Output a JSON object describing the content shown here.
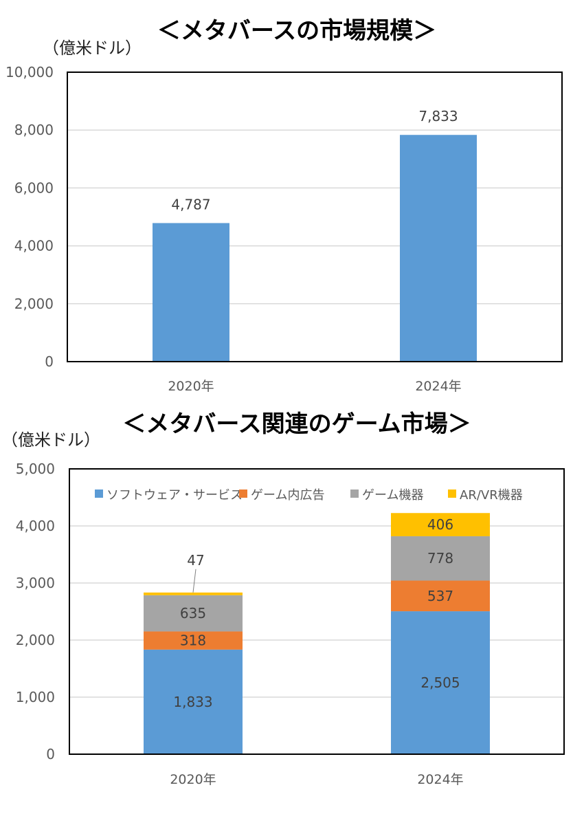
{
  "chart_data": [
    {
      "type": "bar",
      "title": "＜メタバースの市場規模＞",
      "ylabel": "（億米ドル）",
      "xlabel": "",
      "categories": [
        "2020年",
        "2024年"
      ],
      "values": [
        4787,
        7833
      ],
      "value_labels": [
        "4,787",
        "7,833"
      ],
      "ylim": [
        0,
        10000
      ],
      "yticks": [
        0,
        2000,
        4000,
        6000,
        8000,
        10000
      ],
      "ytick_labels": [
        "0",
        "2,000",
        "4,000",
        "6,000",
        "8,000",
        "10,000"
      ],
      "grid": true,
      "color": "#5B9BD5"
    },
    {
      "type": "bar",
      "stacked": true,
      "title": "＜メタバース関連のゲーム市場＞",
      "ylabel": "（億米ドル）",
      "xlabel": "",
      "categories": [
        "2020年",
        "2024年"
      ],
      "ylim": [
        0,
        5000
      ],
      "yticks": [
        0,
        1000,
        2000,
        3000,
        4000,
        5000
      ],
      "ytick_labels": [
        "0",
        "1,000",
        "2,000",
        "3,000",
        "4,000",
        "5,000"
      ],
      "grid": true,
      "legend_position": "top",
      "series": [
        {
          "name": "ソフトウェア・サービス",
          "values": [
            1833,
            2505
          ],
          "labels": [
            "1,833",
            "2,505"
          ],
          "color": "#5B9BD5"
        },
        {
          "name": "ゲーム内広告",
          "values": [
            318,
            537
          ],
          "labels": [
            "318",
            "537"
          ],
          "color": "#ED7D31"
        },
        {
          "name": "ゲーム機器",
          "values": [
            635,
            778
          ],
          "labels": [
            "635",
            "778"
          ],
          "color": "#A5A5A5"
        },
        {
          "name": "AR/VR機器",
          "values": [
            47,
            406
          ],
          "labels": [
            "47",
            "406"
          ],
          "color": "#FFC000"
        }
      ]
    }
  ]
}
